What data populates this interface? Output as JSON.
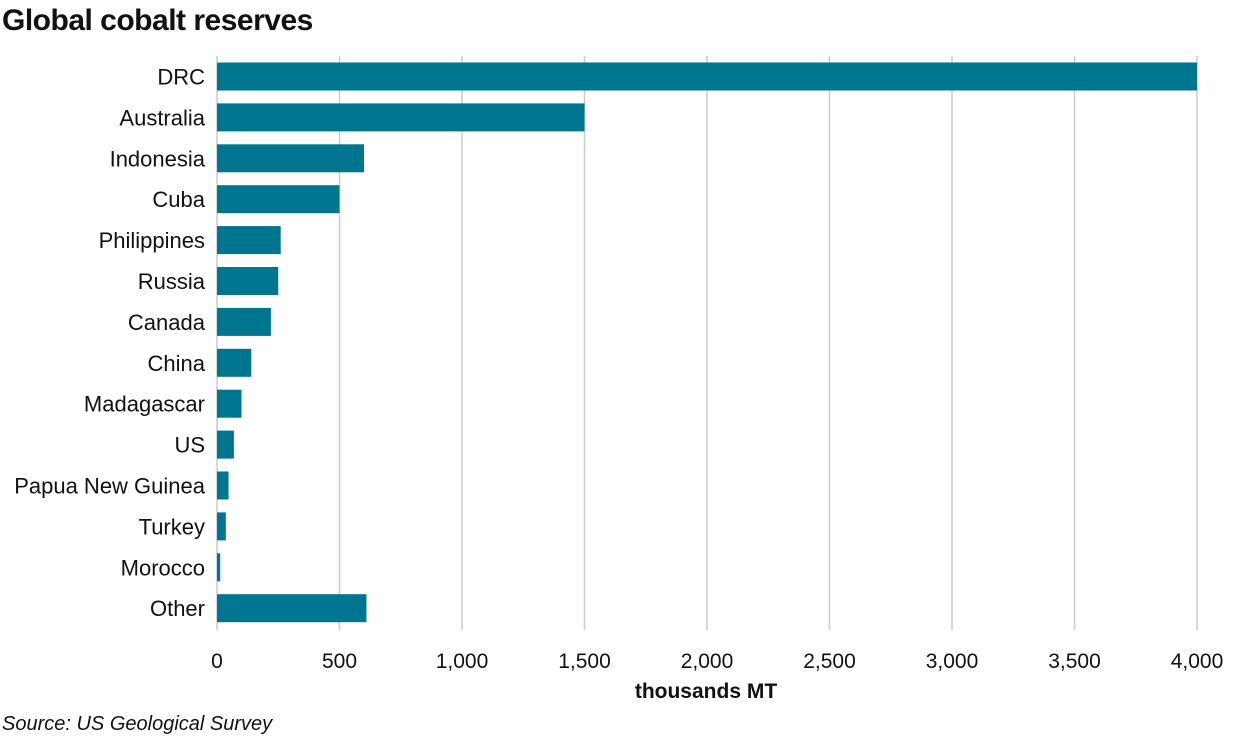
{
  "chart_data": {
    "type": "bar",
    "orientation": "horizontal",
    "title": "Global cobalt reserves",
    "xlabel": "thousands MT",
    "ylabel": "",
    "categories": [
      "DRC",
      "Australia",
      "Indonesia",
      "Cuba",
      "Philippines",
      "Russia",
      "Canada",
      "China",
      "Madagascar",
      "US",
      "Papua New Guinea",
      "Turkey",
      "Morocco",
      "Other"
    ],
    "values": [
      4000,
      1500,
      600,
      500,
      260,
      250,
      220,
      140,
      100,
      69,
      47,
      36,
      13,
      610
    ],
    "xlim": [
      0,
      4000
    ],
    "xticks": [
      0,
      500,
      1000,
      1500,
      2000,
      2500,
      3000,
      3500,
      4000
    ],
    "xtick_labels": [
      "0",
      "500",
      "1,000",
      "1,500",
      "2,000",
      "2,500",
      "3,000",
      "3,500",
      "4,000"
    ],
    "grid": "vertical",
    "legend": "none",
    "bar_color": "#00758f",
    "grid_color": "#cccccc",
    "source": "Source: US Geological Survey"
  }
}
